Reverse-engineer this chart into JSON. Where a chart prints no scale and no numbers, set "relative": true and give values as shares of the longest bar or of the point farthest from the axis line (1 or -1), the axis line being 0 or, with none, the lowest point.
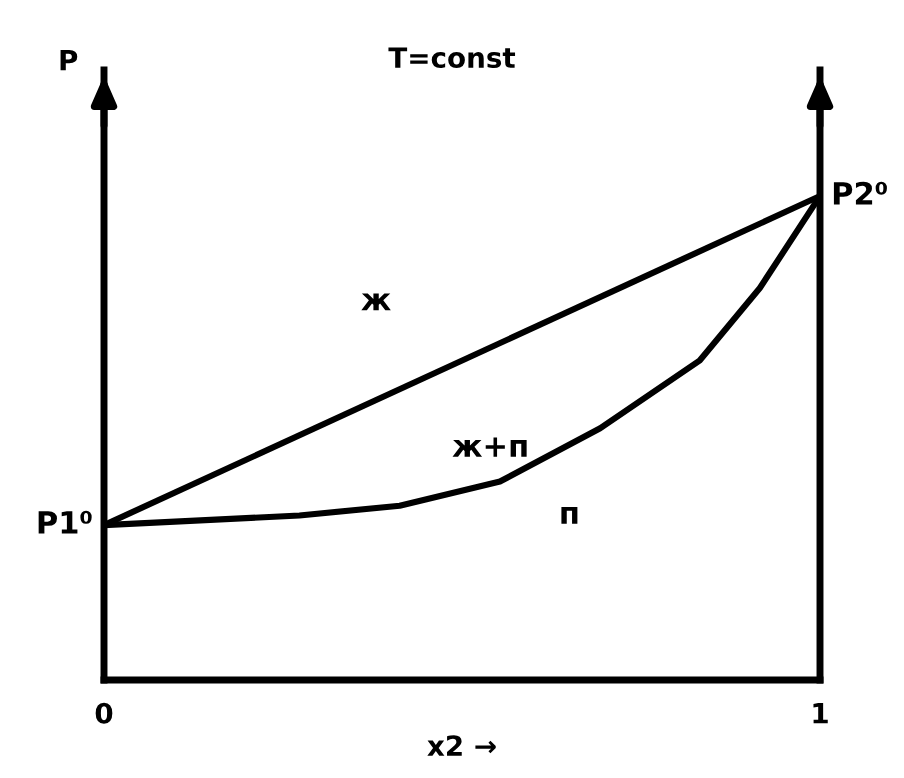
{
  "chart_data": {
    "type": "line",
    "title": "T=const",
    "xlabel": "x2 →",
    "ylabel": "P",
    "relative": true,
    "xlim": [
      0,
      1
    ],
    "xticks": [
      0,
      1
    ],
    "tick_labels": "x",
    "marker": "none",
    "line_style": "solid",
    "series": [
      {
        "color": "#000000",
        "x": [
          0,
          1
        ],
        "values": [
          0.32,
          1
        ]
      },
      {
        "color": "#000000",
        "x": [
          0,
          0.273,
          0.413,
          0.553,
          0.693,
          0.832,
          0.916,
          1
        ],
        "values": [
          0.32,
          0.34,
          0.36,
          0.41,
          0.52,
          0.66,
          0.81,
          1
        ]
      }
    ],
    "annotations": [
      "ж",
      "ж+п",
      "п",
      {
        "text": "P1⁰",
        "x": 0,
        "y": 0.32
      },
      {
        "text": "P2⁰",
        "x": 1,
        "y": 1
      }
    ]
  }
}
